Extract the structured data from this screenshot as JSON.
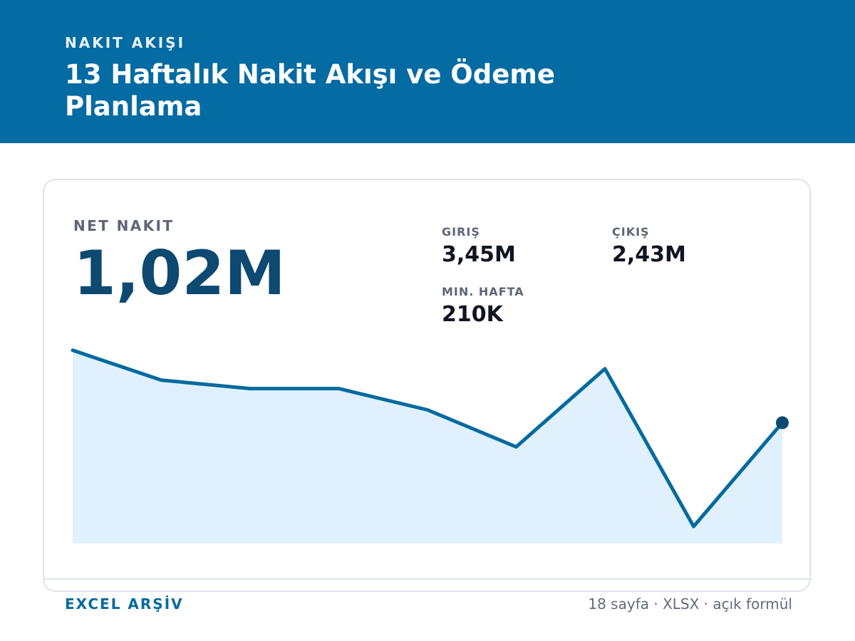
{
  "header": {
    "eyebrow": "NAKIT AKIŞI",
    "title": "13 Haftalık Nakit Akışı ve Ödeme Planlama"
  },
  "summary": {
    "net_label": "NET NAKIT",
    "net_value": "1,02M",
    "inflow_label": "GIRIŞ",
    "inflow_value": "3,45M",
    "outflow_label": "ÇIKIŞ",
    "outflow_value": "2,43M",
    "min_week_label": "MIN. HAFTA",
    "min_week_value": "210K"
  },
  "chart_data": {
    "type": "area",
    "title": "",
    "xlabel": "",
    "ylabel": "",
    "x": [
      1,
      2,
      3,
      4,
      5,
      6,
      7,
      8,
      9
    ],
    "values": [
      1.58,
      1.37,
      1.31,
      1.31,
      1.16,
      0.9,
      1.45,
      0.34,
      1.07
    ],
    "ylim": [
      0.22,
      1.94
    ],
    "grid": false,
    "legend": "none",
    "last_point_marked": true
  },
  "footer": {
    "left": "EXCEL ARŞİV",
    "right": "18 sayfa · XLSX · açık formül"
  },
  "colors": {
    "header_bg": "#046ba3",
    "line": "#066a9e",
    "area_fill": "#e0f1fd",
    "net_value": "#0d4970",
    "end_marker": "#0d4970"
  }
}
